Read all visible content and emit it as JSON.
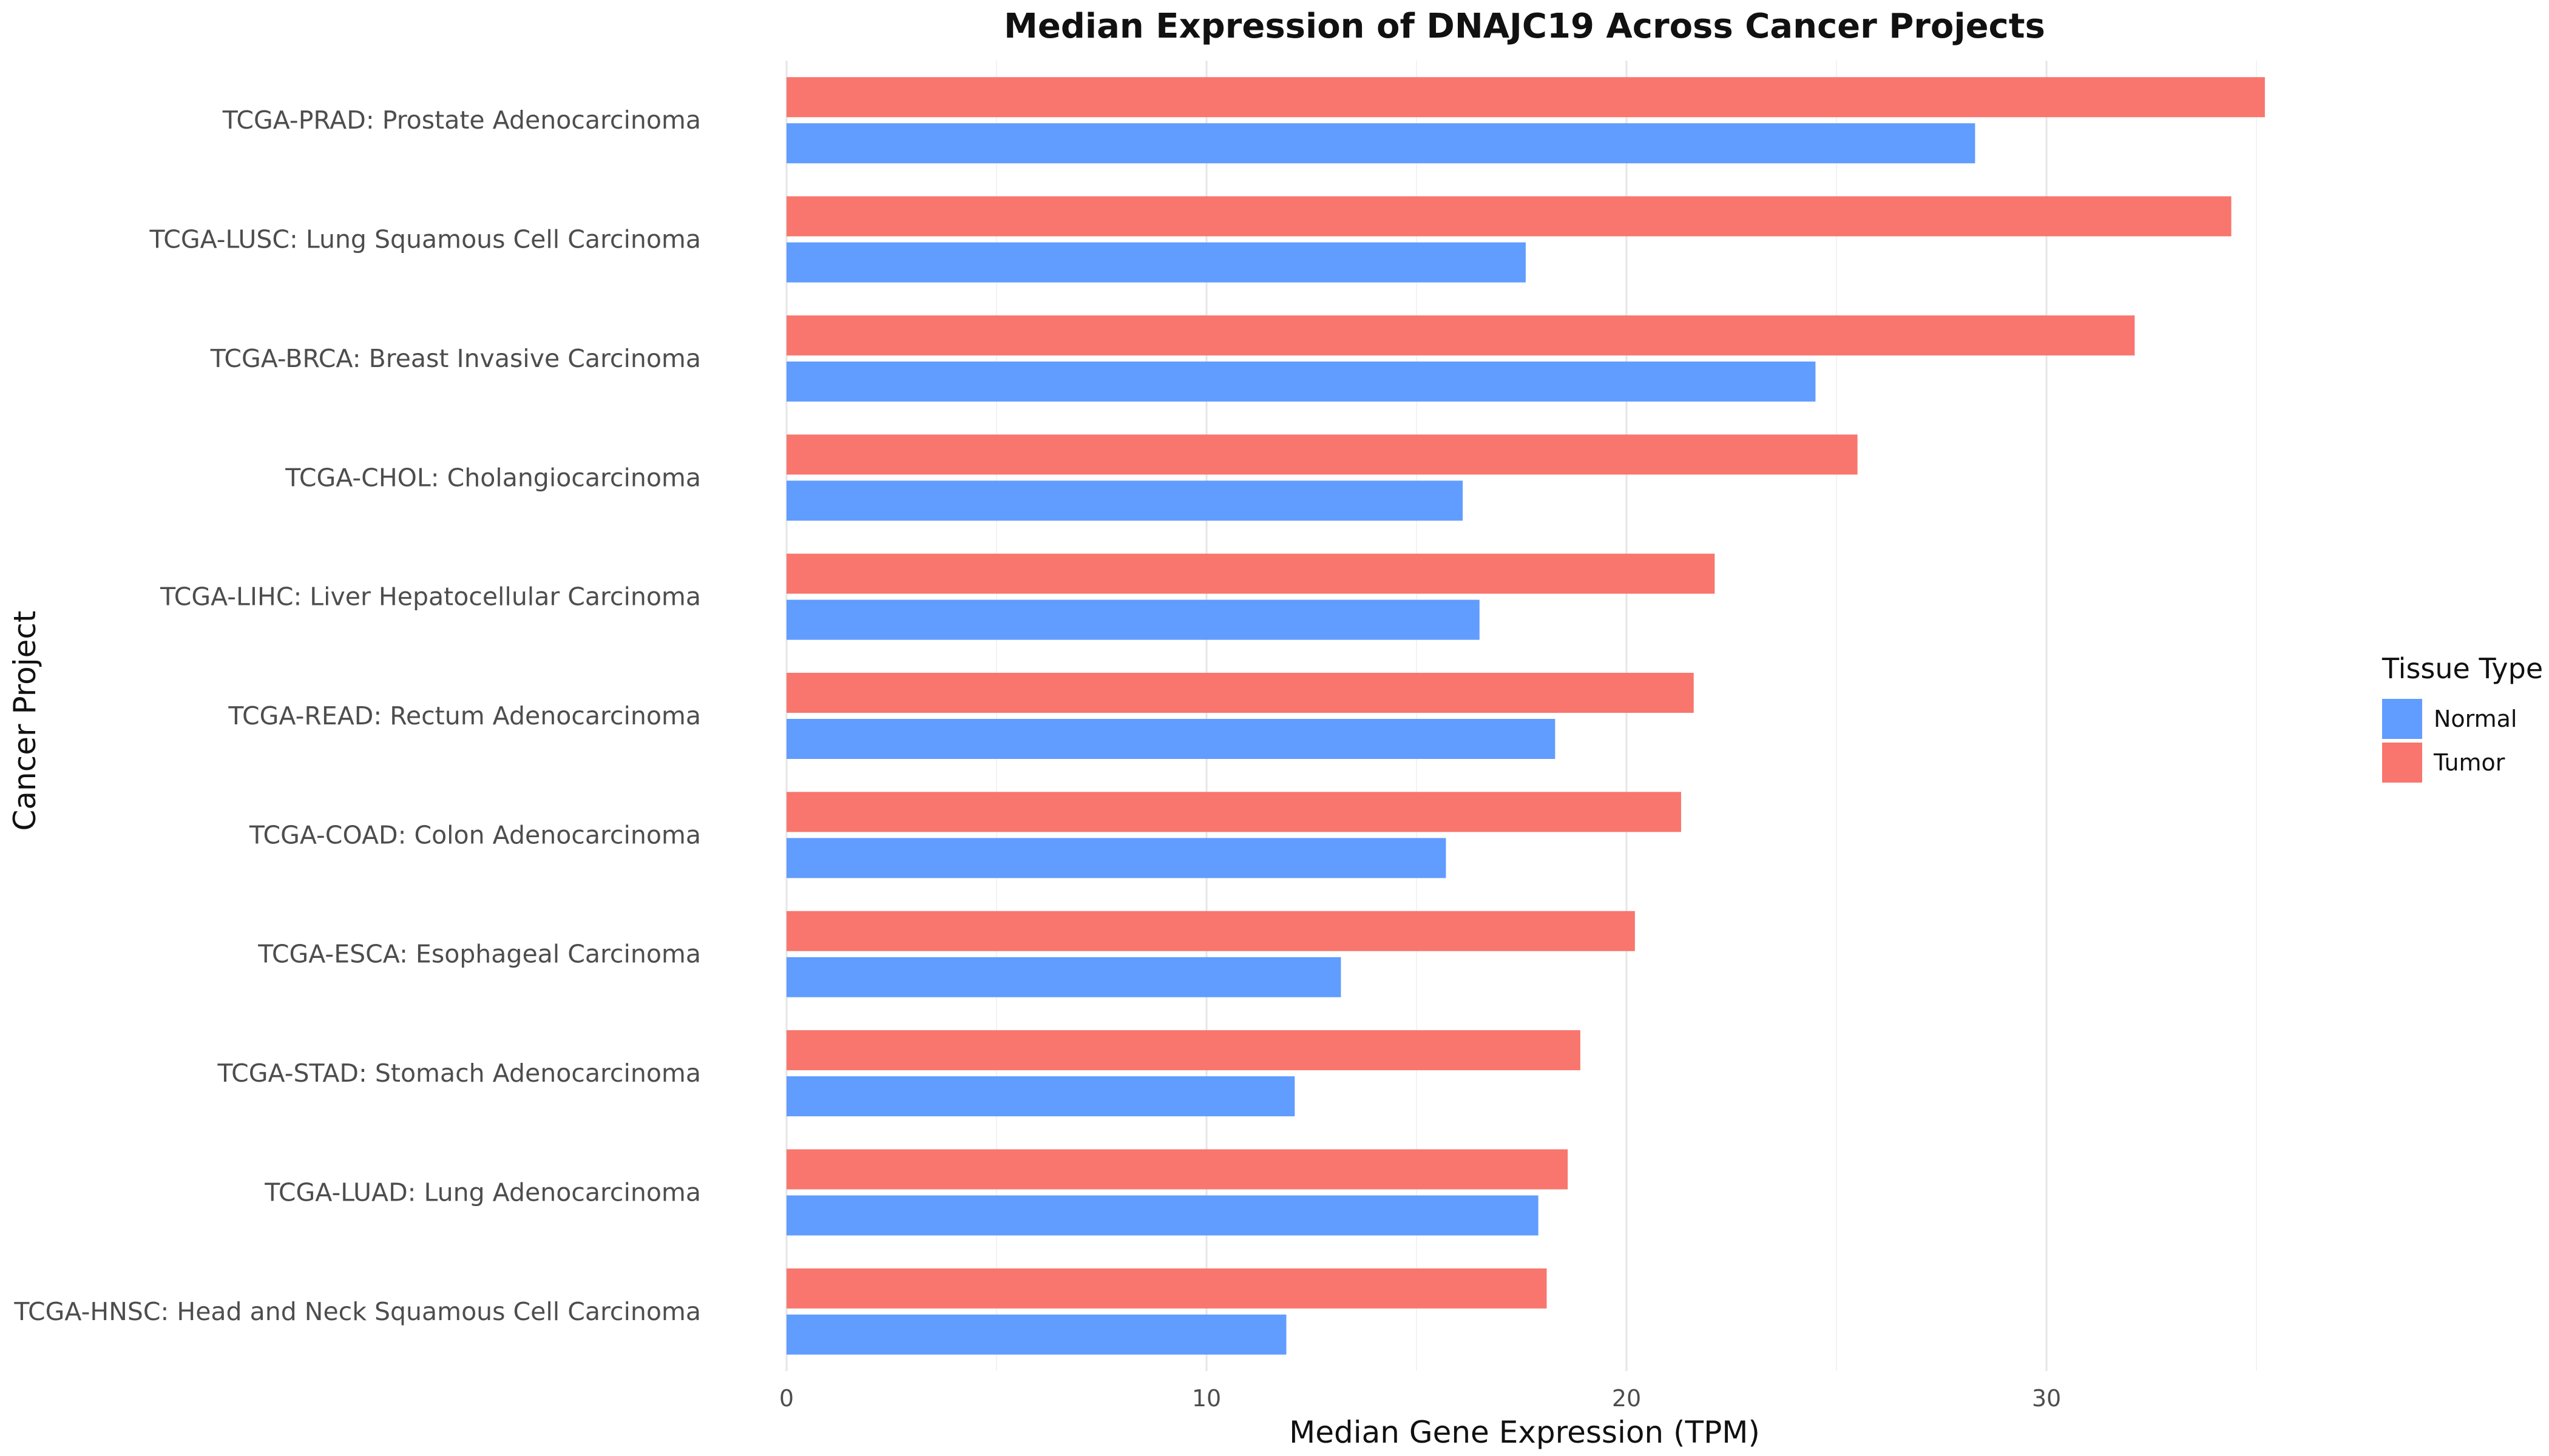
{
  "chart_data": {
    "type": "bar",
    "orientation": "horizontal",
    "title": "Median Expression of DNAJC19 Across Cancer Projects",
    "xlabel": "Median Gene Expression (TPM)",
    "ylabel": "Cancer Project",
    "xlim": [
      0,
      36.5
    ],
    "xticks": [
      0,
      10,
      20,
      30
    ],
    "grid": true,
    "legend": {
      "title": "Tissue Type",
      "position": "right",
      "entries": [
        "Normal",
        "Tumor"
      ]
    },
    "categories": [
      "TCGA-PRAD: Prostate Adenocarcinoma",
      "TCGA-LUSC: Lung Squamous Cell Carcinoma",
      "TCGA-BRCA: Breast Invasive Carcinoma",
      "TCGA-CHOL: Cholangiocarcinoma",
      "TCGA-LIHC: Liver Hepatocellular Carcinoma",
      "TCGA-READ: Rectum Adenocarcinoma",
      "TCGA-COAD: Colon Adenocarcinoma",
      "TCGA-ESCA: Esophageal Carcinoma",
      "TCGA-STAD: Stomach Adenocarcinoma",
      "TCGA-LUAD: Lung Adenocarcinoma",
      "TCGA-HNSC: Head and Neck Squamous Cell Carcinoma"
    ],
    "series": [
      {
        "name": "Tumor",
        "color": "#F8766D",
        "values": [
          35.2,
          34.4,
          32.1,
          25.5,
          22.1,
          21.6,
          21.3,
          20.2,
          18.9,
          18.6,
          18.1
        ]
      },
      {
        "name": "Normal",
        "color": "#619CFF",
        "values": [
          28.3,
          17.6,
          24.5,
          16.1,
          16.5,
          18.3,
          15.7,
          13.2,
          12.1,
          17.9,
          11.9
        ]
      }
    ]
  }
}
